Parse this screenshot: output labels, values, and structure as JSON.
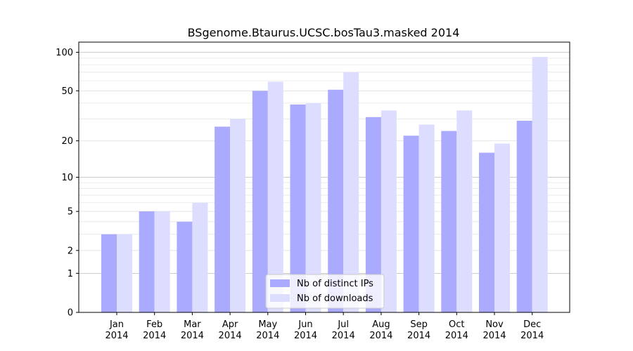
{
  "chart_data": {
    "type": "bar",
    "title": "BSgenome.Btaurus.UCSC.bosTau3.masked 2014",
    "xlabel": "",
    "ylabel": "",
    "yscale": "log1p",
    "ylim": [
      0,
      120
    ],
    "yticks": [
      0,
      1,
      2,
      5,
      10,
      20,
      50,
      100
    ],
    "categories": [
      {
        "month": "Jan",
        "year": "2014"
      },
      {
        "month": "Feb",
        "year": "2014"
      },
      {
        "month": "Mar",
        "year": "2014"
      },
      {
        "month": "Apr",
        "year": "2014"
      },
      {
        "month": "May",
        "year": "2014"
      },
      {
        "month": "Jun",
        "year": "2014"
      },
      {
        "month": "Jul",
        "year": "2014"
      },
      {
        "month": "Aug",
        "year": "2014"
      },
      {
        "month": "Sep",
        "year": "2014"
      },
      {
        "month": "Oct",
        "year": "2014"
      },
      {
        "month": "Nov",
        "year": "2014"
      },
      {
        "month": "Dec",
        "year": "2014"
      }
    ],
    "series": [
      {
        "name": "Nb of distinct IPs",
        "color": "#aaaaff",
        "values": [
          3,
          5,
          4,
          26,
          50,
          39,
          51,
          31,
          22,
          24,
          16,
          29
        ]
      },
      {
        "name": "Nb of downloads",
        "color": "#ddddff",
        "values": [
          3,
          5,
          6,
          30,
          59,
          40,
          70,
          35,
          27,
          35,
          19,
          92
        ]
      }
    ],
    "legend": "lower-center",
    "grid": true
  }
}
